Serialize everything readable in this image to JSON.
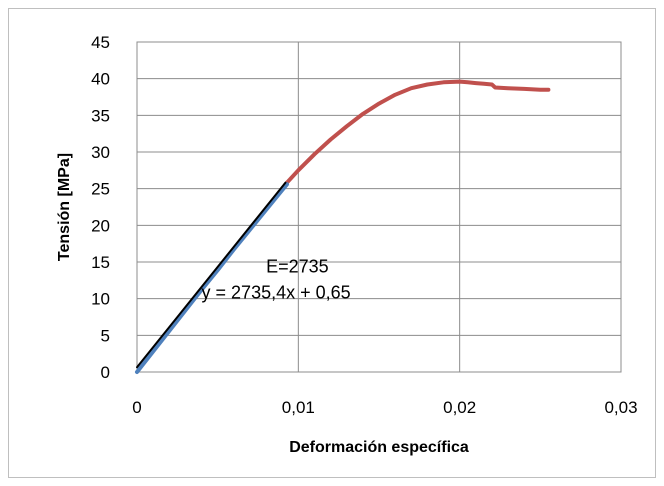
{
  "chart_data": {
    "type": "line",
    "title": "",
    "xlabel": "Deformación específica",
    "ylabel": "Tensión [MPa]",
    "xlim": [
      0,
      0.03
    ],
    "ylim": [
      0,
      45
    ],
    "x_ticks": [
      0,
      0.01,
      0.02,
      0.03
    ],
    "x_tick_labels": [
      "0",
      "0,01",
      "0,02",
      "0,03"
    ],
    "y_ticks": [
      0,
      5,
      10,
      15,
      20,
      25,
      30,
      35,
      40,
      45
    ],
    "y_tick_labels": [
      "0",
      "5",
      "10",
      "15",
      "20",
      "25",
      "30",
      "35",
      "40",
      "45"
    ],
    "grid": true,
    "legend": "none",
    "series": [
      {
        "color": "#c0504d",
        "x": [
          0.0092,
          0.01,
          0.011,
          0.012,
          0.013,
          0.014,
          0.015,
          0.016,
          0.017,
          0.018,
          0.019,
          0.02,
          0.0205,
          0.021,
          0.0215,
          0.022,
          0.0222,
          0.023,
          0.024,
          0.025,
          0.0255
        ],
        "y": [
          25.6,
          27.5,
          29.7,
          31.7,
          33.5,
          35.2,
          36.6,
          37.8,
          38.7,
          39.2,
          39.5,
          39.6,
          39.5,
          39.4,
          39.3,
          39.2,
          38.8,
          38.7,
          38.6,
          38.5,
          38.5
        ]
      },
      {
        "color": "#4f81bd",
        "x": [
          0.0,
          0.001,
          0.002,
          0.003,
          0.004,
          0.005,
          0.006,
          0.007,
          0.008,
          0.009,
          0.0093
        ],
        "y": [
          0.0,
          2.8,
          5.6,
          8.4,
          11.2,
          13.9,
          16.7,
          19.4,
          22.1,
          24.8,
          25.6
        ]
      },
      {
        "color": "#000000",
        "x": [
          0.0,
          0.0092
        ],
        "y": [
          0.65,
          25.81
        ]
      }
    ],
    "annotations": [
      {
        "text": "E=2735",
        "x": 0.008,
        "y": 13.6
      },
      {
        "text": "y = 2735,4x + 0,65",
        "x": 0.004,
        "y": 10.0
      }
    ]
  }
}
